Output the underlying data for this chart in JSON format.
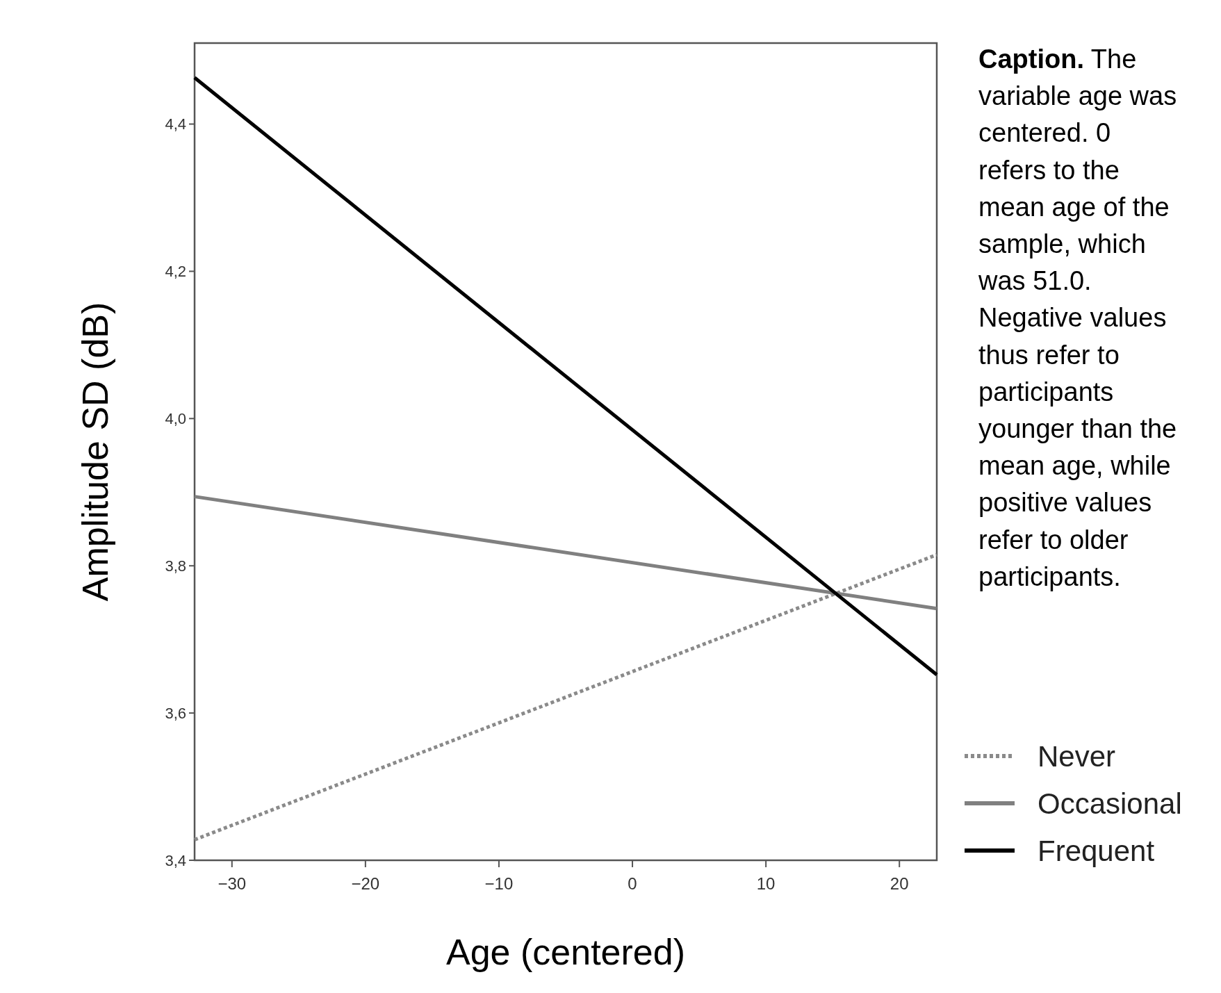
{
  "chart_data": {
    "type": "line",
    "xlabel": "Age (centered)",
    "ylabel": "Amplitude SD (dB)",
    "x": [
      -32.8,
      22.8
    ],
    "series": [
      {
        "name": "Never",
        "color": "#8a8a8a",
        "values": [
          3.428,
          3.815
        ],
        "line_style": "dotted"
      },
      {
        "name": "Occasional",
        "color": "#808080",
        "values": [
          3.894,
          3.742
        ],
        "line_style": "solid"
      },
      {
        "name": "Frequent",
        "color": "#000000",
        "values": [
          4.463,
          3.652
        ],
        "line_style": "solid"
      }
    ],
    "xlim": [
      -32.8,
      22.8
    ],
    "ylim": [
      3.4,
      4.51
    ],
    "xticks": [
      {
        "value": -30,
        "label": "−30"
      },
      {
        "value": -20,
        "label": "−20"
      },
      {
        "value": -10,
        "label": "−10"
      },
      0,
      10,
      20
    ],
    "yticks": [
      {
        "value": 3.4,
        "label": "3,4"
      },
      {
        "value": 3.6,
        "label": "3,6"
      },
      {
        "value": 3.8,
        "label": "3,8"
      },
      {
        "value": 4.0,
        "label": "4,0"
      },
      {
        "value": 4.2,
        "label": "4,2"
      },
      {
        "value": 4.4,
        "label": "4,4"
      }
    ],
    "legend": "bottom right",
    "grid": false,
    "annotations": [
      "Caption. The variable age was centered. 0 refers to the mean age of the sample, which was 51.0. Negative values thus refer to participants younger than the mean age, while positive values refer to older participants."
    ]
  }
}
